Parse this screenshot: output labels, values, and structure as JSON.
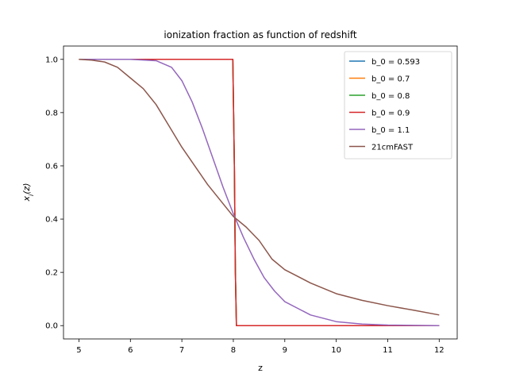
{
  "chart_data": {
    "type": "line",
    "title": "ionization fraction as function of redshift",
    "xlabel": "z",
    "ylabel": "x_i(z)",
    "xlim": [
      4.7,
      12.35
    ],
    "ylim": [
      -0.05,
      1.05
    ],
    "xticks": [
      5,
      6,
      7,
      8,
      9,
      10,
      11,
      12
    ],
    "yticks": [
      0.0,
      0.2,
      0.4,
      0.6,
      0.8,
      1.0
    ],
    "grid": false,
    "legend_position": "top-right",
    "series": [
      {
        "name": "b_0 = 0.593",
        "color": "#1f77b4",
        "x": [
          5,
          7.99,
          8.02,
          8.04,
          8.06,
          12
        ],
        "y": [
          1.0,
          1.0,
          0.6,
          0.2,
          0.0,
          0.0
        ]
      },
      {
        "name": "b_0 = 0.7",
        "color": "#ff7f0e",
        "x": [
          5,
          7.99,
          8.02,
          8.04,
          8.06,
          12
        ],
        "y": [
          1.0,
          1.0,
          0.6,
          0.2,
          0.0,
          0.0
        ]
      },
      {
        "name": "b_0 = 0.8",
        "color": "#2ca02c",
        "x": [
          5,
          7.99,
          8.02,
          8.04,
          8.06,
          12
        ],
        "y": [
          1.0,
          1.0,
          0.6,
          0.2,
          0.0,
          0.0
        ]
      },
      {
        "name": "b_0 = 0.9",
        "color": "#d62728",
        "x": [
          5,
          7.99,
          8.02,
          8.04,
          8.06,
          12
        ],
        "y": [
          1.0,
          1.0,
          0.6,
          0.2,
          0.0,
          0.0
        ]
      },
      {
        "name": "b_0 = 1.1",
        "color": "#9467bd",
        "x": [
          5,
          5.5,
          6,
          6.5,
          6.8,
          7.0,
          7.2,
          7.4,
          7.6,
          7.8,
          8.0,
          8.2,
          8.4,
          8.6,
          8.8,
          9.0,
          9.5,
          10.0,
          10.5,
          11.0,
          12.0
        ],
        "y": [
          1.0,
          1.0,
          1.0,
          0.995,
          0.97,
          0.92,
          0.84,
          0.74,
          0.63,
          0.52,
          0.42,
          0.33,
          0.25,
          0.18,
          0.13,
          0.09,
          0.04,
          0.015,
          0.006,
          0.002,
          0.0
        ]
      },
      {
        "name": "21cmFAST",
        "color": "#8c564b",
        "x": [
          5,
          5.25,
          5.5,
          5.75,
          6.0,
          6.25,
          6.5,
          6.75,
          7.0,
          7.25,
          7.5,
          7.75,
          8.0,
          8.25,
          8.5,
          8.75,
          9.0,
          9.5,
          10.0,
          10.5,
          11.0,
          11.5,
          12.0
        ],
        "y": [
          1.0,
          0.997,
          0.99,
          0.97,
          0.93,
          0.89,
          0.83,
          0.75,
          0.67,
          0.6,
          0.53,
          0.47,
          0.41,
          0.37,
          0.32,
          0.25,
          0.21,
          0.16,
          0.12,
          0.095,
          0.075,
          0.058,
          0.04
        ]
      }
    ]
  }
}
